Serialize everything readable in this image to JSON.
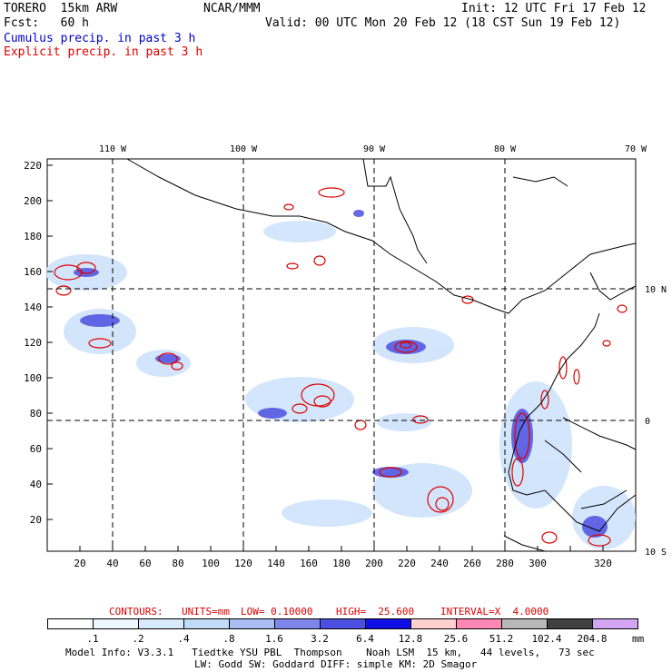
{
  "header": {
    "model": "TORERO  15km ARW",
    "org": "NCAR/MMM",
    "init": "Init: 12 UTC Fri 17 Feb 12",
    "fcst": "Fcst:   60 h",
    "valid": "Valid: 00 UTC Mon 20 Feb 12 (18 CST Sun 19 Feb 12)",
    "field1": "Cumulus precip. in past 3 h",
    "field2": "Explicit precip. in past 3 h"
  },
  "map": {
    "top_lon_labels": [
      "110 W",
      "100 W",
      "90 W",
      "80 W",
      "70 W"
    ],
    "right_lat_labels": [
      "10 N",
      "0",
      "10 S"
    ],
    "left_y_ticks": [
      "220",
      "200",
      "180",
      "160",
      "140",
      "120",
      "100",
      "80",
      "60",
      "40",
      "20"
    ],
    "bottom_x_ticks": [
      "20",
      "40",
      "60",
      "80",
      "100",
      "120",
      "140",
      "160",
      "180",
      "200",
      "220",
      "240",
      "260",
      "280",
      "300",
      "320"
    ]
  },
  "contour_info": {
    "contours": "CONTOURS:",
    "units": "UNITS=mm",
    "low": "LOW= 0.10000",
    "high": "HIGH=  25.600",
    "interval": "INTERVAL=X  4.0000"
  },
  "colorbar": {
    "units": "mm",
    "labels": [
      ".1",
      ".2",
      ".4",
      ".8",
      "1.6",
      "3.2",
      "6.4",
      "12.8",
      "25.6",
      "51.2",
      "102.4",
      "204.8"
    ],
    "colors": [
      "#ffffff",
      "#eef6ff",
      "#d6eafc",
      "#c2dbf7",
      "#aabcf2",
      "#7f86ea",
      "#4c4fe0",
      "#1010e6",
      "#ffd0d0",
      "#ff88b4",
      "#b8b8b8",
      "#404040",
      "#d2a6f2"
    ]
  },
  "footer": {
    "line1": "Model Info: V3.3.1   Tiedtke YSU PBL  Thompson    Noah LSM  15 km,   44 levels,   73 sec",
    "line2": "LW: Godd SW: Goddard DIFF: simple KM: 2D Smagor"
  }
}
